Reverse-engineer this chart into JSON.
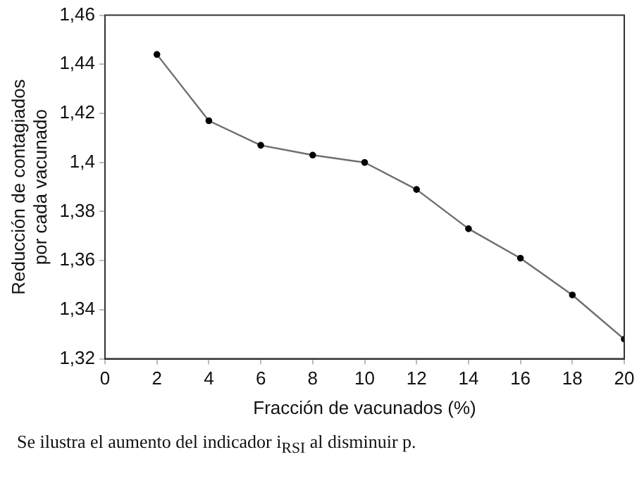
{
  "chart_data": {
    "type": "line",
    "xlabel": "Fracción de vacunados (%)",
    "ylabel": "Reducción de contagiados por cada vacunado",
    "x": [
      2,
      4,
      6,
      8,
      10,
      12,
      14,
      16,
      18,
      20
    ],
    "series": [
      {
        "color": "#6e6e6e",
        "values": [
          1.444,
          1.417,
          1.407,
          1.403,
          1.4,
          1.389,
          1.373,
          1.361,
          1.346,
          1.328
        ]
      }
    ],
    "xlim": [
      0,
      20
    ],
    "xticks": [
      0,
      2,
      4,
      6,
      8,
      10,
      12,
      14,
      16,
      18,
      20
    ],
    "ylim": [
      1.32,
      1.46
    ],
    "yticks": [
      {
        "value": 1.32,
        "label": "1,32"
      },
      {
        "value": 1.34,
        "label": "1,34"
      },
      {
        "value": 1.36,
        "label": "1,36"
      },
      {
        "value": 1.38,
        "label": "1,38"
      },
      {
        "value": 1.4,
        "label": "1,4"
      },
      {
        "value": 1.42,
        "label": "1,42"
      },
      {
        "value": 1.44,
        "label": "1,44"
      },
      {
        "value": 1.46,
        "label": "1,46"
      }
    ],
    "grid": false,
    "legend": false,
    "marker": "circle",
    "line_style": "solid",
    "annotations": [
      "Se ilustra el aumento del indicador i$_{RSI}$ al disminuir p."
    ]
  }
}
